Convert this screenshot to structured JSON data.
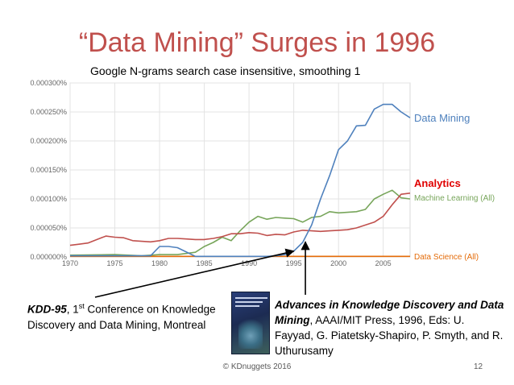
{
  "title": "“Data Mining” Surges in 1996",
  "subtitle": "Google N-grams search  case insensitive, smoothing 1",
  "chart_data": {
    "type": "line",
    "xlim": [
      1970,
      2008
    ],
    "ylim": [
      0,
      0.0003
    ],
    "x_ticks": [
      "1970",
      "1975",
      "1980",
      "1985",
      "1990",
      "1995",
      "2000",
      "2005"
    ],
    "y_ticks": [
      "0.000000%",
      "0.000050%",
      "0.000100%",
      "0.000150%",
      "0.000200%",
      "0.000250%",
      "0.000300%"
    ],
    "grid": true,
    "series": [
      {
        "name": "Data Mining",
        "color": "#4f81bd",
        "x": [
          1970,
          1975,
          1978,
          1979,
          1980,
          1981,
          1982,
          1984,
          1986,
          1988,
          1990,
          1992,
          1993,
          1994,
          1995,
          1996,
          1997,
          1998,
          1999,
          2000,
          2001,
          2002,
          2003,
          2004,
          2005,
          2006,
          2007,
          2008
        ],
        "y": [
          2e-06,
          2e-06,
          2e-06,
          2e-06,
          1.8e-05,
          1.8e-05,
          1.6e-05,
          1e-06,
          1e-06,
          1e-06,
          1e-06,
          1e-06,
          2e-06,
          4e-06,
          1e-05,
          2.5e-05,
          5.5e-05,
          0.0001,
          0.00014,
          0.000185,
          0.0002,
          0.000226,
          0.000227,
          0.000255,
          0.000263,
          0.000263,
          0.00025,
          0.00024
        ]
      },
      {
        "name": "Analytics",
        "color": "#c0504d",
        "x": [
          1970,
          1971,
          1972,
          1973,
          1974,
          1975,
          1976,
          1977,
          1978,
          1979,
          1980,
          1981,
          1982,
          1983,
          1984,
          1985,
          1986,
          1987,
          1988,
          1989,
          1990,
          1991,
          1992,
          1993,
          1994,
          1995,
          1996,
          1997,
          1998,
          1999,
          2000,
          2001,
          2002,
          2003,
          2004,
          2005,
          2006,
          2007,
          2008
        ],
        "y": [
          2e-05,
          2.2e-05,
          2.4e-05,
          3e-05,
          3.6e-05,
          3.4e-05,
          3.3e-05,
          2.8e-05,
          2.7e-05,
          2.6e-05,
          2.8e-05,
          3.2e-05,
          3.2e-05,
          3.1e-05,
          3e-05,
          3e-05,
          3.2e-05,
          3.5e-05,
          4e-05,
          4e-05,
          4.2e-05,
          4.1e-05,
          3.7e-05,
          3.9e-05,
          3.8e-05,
          4.3e-05,
          4.6e-05,
          4.5e-05,
          4.4e-05,
          4.5e-05,
          4.6e-05,
          4.7e-05,
          5e-05,
          5.5e-05,
          6e-05,
          7e-05,
          9e-05,
          0.000108,
          0.00011
        ]
      },
      {
        "name": "Machine Learning (All)",
        "color": "#77a55a",
        "x": [
          1970,
          1975,
          1978,
          1980,
          1982,
          1984,
          1985,
          1986,
          1987,
          1988,
          1989,
          1990,
          1991,
          1992,
          1993,
          1994,
          1995,
          1996,
          1997,
          1998,
          1999,
          2000,
          2001,
          2002,
          2003,
          2004,
          2005,
          2006,
          2007,
          2008
        ],
        "y": [
          3e-06,
          4e-06,
          2e-06,
          4e-06,
          4e-06,
          8e-06,
          1.8e-05,
          2.5e-05,
          3.4e-05,
          2.8e-05,
          4.5e-05,
          6e-05,
          7e-05,
          6.5e-05,
          6.8e-05,
          6.7e-05,
          6.6e-05,
          6e-05,
          6.8e-05,
          7e-05,
          7.8e-05,
          7.6e-05,
          7.7e-05,
          7.8e-05,
          8.2e-05,
          0.0001,
          0.000108,
          0.000115,
          0.000102,
          0.0001
        ]
      },
      {
        "name": "Data Science (All)",
        "color": "#e46c0a",
        "x": [
          1970,
          1980,
          1990,
          2000,
          2008
        ],
        "y": [
          1e-06,
          1e-06,
          1e-06,
          1e-06,
          1e-06
        ]
      }
    ],
    "annotations": [
      {
        "label": "KDD-95",
        "target_year": 1995,
        "target_value": 1e-05
      },
      {
        "label": "Advances in Knowledge Discovery and Data Mining",
        "target_year": 1996.3,
        "target_value": 2.6e-05
      }
    ]
  },
  "notes": {
    "kdd_bold": "KDD-95",
    "kdd_rest_1": ", 1",
    "kdd_sup": "st",
    "kdd_rest_2": " Conference on Knowledge Discovery and Data Mining, Montreal",
    "book_bold": "Advances in Knowledge Discovery and Data Mining",
    "book_rest": ", AAAI/MIT Press, 1996, Eds: U. Fayyad, G. Piatetsky-Shapiro, P. Smyth, and R. Uthurusamy"
  },
  "footer": "© KDnuggets 2016",
  "page_number": "12"
}
